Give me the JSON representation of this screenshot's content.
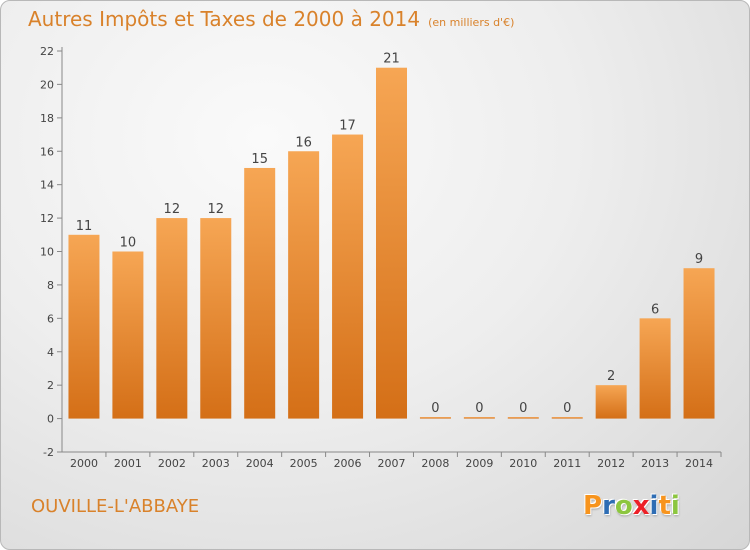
{
  "header": {
    "title": "Autres Impôts et Taxes de 2000 à 2014",
    "subtitle": "(en milliers d'€)"
  },
  "footer": {
    "commune": "OUVILLE-L'ABBAYE",
    "logo_text": "Proxiti",
    "logo_colors": [
      "#f7941d",
      "#2e6db4",
      "#8cc63f",
      "#ec2027",
      "#2e6db4",
      "#f7941d",
      "#8cc63f"
    ]
  },
  "colors": {
    "accent": "#d9822b",
    "bar_light": "#f6a654",
    "bar_dark": "#d46f17",
    "axis": "#888888"
  },
  "chart_data": {
    "type": "bar",
    "categories": [
      "2000",
      "2001",
      "2002",
      "2003",
      "2004",
      "2005",
      "2006",
      "2007",
      "2008",
      "2009",
      "2010",
      "2011",
      "2012",
      "2013",
      "2014"
    ],
    "values": [
      11,
      10,
      12,
      12,
      15,
      16,
      17,
      21,
      0,
      0,
      0,
      0,
      2,
      6,
      9
    ],
    "data_labels": [
      "11",
      "10",
      "12",
      "12",
      "15",
      "16",
      "17",
      "21",
      "0",
      "0",
      "0",
      "0",
      "2",
      "6",
      "9"
    ],
    "ylim": [
      -2,
      22
    ],
    "yticks": [
      -2,
      0,
      2,
      4,
      6,
      8,
      10,
      12,
      14,
      16,
      18,
      20,
      22
    ],
    "title": "Autres Impôts et Taxes de 2000 à 2014",
    "xlabel": "",
    "ylabel": "",
    "grid": false
  }
}
